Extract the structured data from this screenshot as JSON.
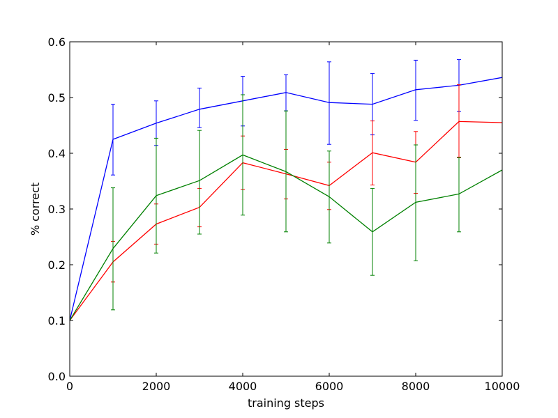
{
  "chart_data": {
    "type": "line",
    "title": "",
    "xlabel": "training steps",
    "ylabel": "% correct",
    "xlim": [
      0,
      10000
    ],
    "ylim": [
      0.0,
      0.6
    ],
    "xticks": [
      0,
      2000,
      4000,
      6000,
      8000,
      10000
    ],
    "xtick_labels": [
      "0",
      "2000",
      "4000",
      "6000",
      "8000",
      "10000"
    ],
    "yticks": [
      0.0,
      0.1,
      0.2,
      0.3,
      0.4,
      0.5,
      0.6
    ],
    "ytick_labels": [
      "0.0",
      "0.1",
      "0.2",
      "0.3",
      "0.4",
      "0.5",
      "0.6"
    ],
    "grid": false,
    "legend": "none",
    "x": [
      0,
      1000,
      2000,
      3000,
      4000,
      5000,
      6000,
      7000,
      8000,
      9000,
      10000
    ],
    "series": [
      {
        "color": "#0000ff",
        "values": [
          0.1,
          0.425,
          0.454,
          0.479,
          0.494,
          0.509,
          0.491,
          0.488,
          0.514,
          0.522,
          0.536
        ],
        "err_low": [
          null,
          0.361,
          0.414,
          0.446,
          0.449,
          0.476,
          0.416,
          0.433,
          0.459,
          0.475,
          null
        ],
        "err_high": [
          null,
          0.488,
          0.494,
          0.517,
          0.538,
          0.541,
          0.564,
          0.543,
          0.567,
          0.568,
          null
        ]
      },
      {
        "color": "#ff0000",
        "values": [
          0.1,
          0.205,
          0.273,
          0.303,
          0.383,
          0.363,
          0.342,
          0.401,
          0.384,
          0.457,
          0.455
        ],
        "err_low": [
          null,
          0.169,
          0.237,
          0.268,
          0.335,
          0.318,
          0.299,
          0.343,
          0.328,
          0.393,
          null
        ],
        "err_high": [
          null,
          0.242,
          0.309,
          0.337,
          0.431,
          0.407,
          0.384,
          0.458,
          0.439,
          0.523,
          null
        ]
      },
      {
        "color": "#008000",
        "values": [
          0.1,
          0.229,
          0.324,
          0.351,
          0.397,
          0.367,
          0.322,
          0.259,
          0.312,
          0.327,
          0.37
        ],
        "err_low": [
          null,
          0.119,
          0.221,
          0.255,
          0.289,
          0.259,
          0.239,
          0.181,
          0.207,
          0.259,
          null
        ],
        "err_high": [
          null,
          0.338,
          0.427,
          0.441,
          0.505,
          0.476,
          0.404,
          0.337,
          0.415,
          0.392,
          null
        ]
      }
    ]
  }
}
